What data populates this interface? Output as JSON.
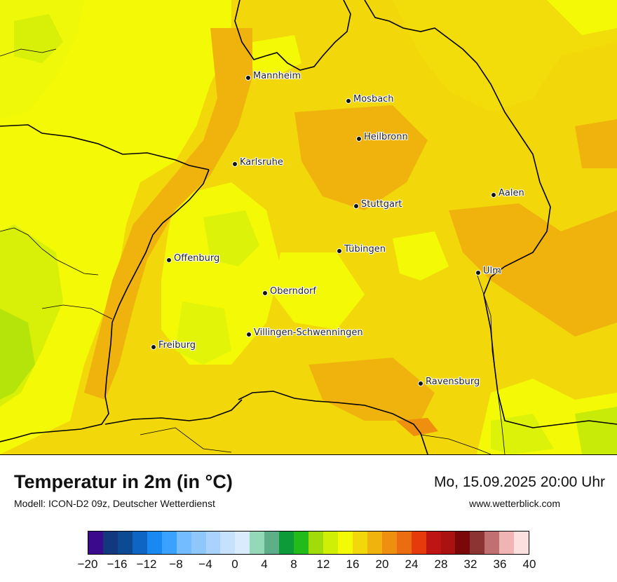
{
  "title": "Temperatur in 2m (in °C)",
  "model": "Modell: ICON-D2 09z, Deutscher Wetterdienst",
  "datetime": "Mo, 15.09.2025 20:00 Uhr",
  "website": "www.wetterblick.com",
  "cities": [
    {
      "name": "Mannheim"
    },
    {
      "name": "Mosbach"
    },
    {
      "name": "Heilbronn"
    },
    {
      "name": "Karlsruhe"
    },
    {
      "name": "Aalen"
    },
    {
      "name": "Stuttgart"
    },
    {
      "name": "Tübingen"
    },
    {
      "name": "Offenburg"
    },
    {
      "name": "Ulm"
    },
    {
      "name": "Oberndorf"
    },
    {
      "name": "Villingen-Schwenningen"
    },
    {
      "name": "Freiburg"
    },
    {
      "name": "Ravensburg"
    }
  ],
  "legend": {
    "colors": [
      "#3b0a8c",
      "#12387e",
      "#0c4b92",
      "#0e65c3",
      "#1889f0",
      "#39a2ff",
      "#73bcff",
      "#8ec8fb",
      "#a9d3fc",
      "#c6e1fc",
      "#d9ebfd",
      "#93d9b7",
      "#5fae8a",
      "#0d9b3a",
      "#22bb19",
      "#a0dc0a",
      "#d0ef06",
      "#f4fa06",
      "#f2d80a",
      "#f0b30e",
      "#ef8f10",
      "#ec6c12",
      "#e63a0d",
      "#be1414",
      "#aa1212",
      "#7a0808",
      "#8c3434",
      "#c07070",
      "#f0b4b4",
      "#fce0e0"
    ],
    "ticks": [
      "−20",
      "−16",
      "−12",
      "−8",
      "−4",
      "0",
      "4",
      "8",
      "12",
      "16",
      "20",
      "24",
      "28",
      "32",
      "36",
      "40"
    ],
    "min": -20,
    "max": 40
  }
}
